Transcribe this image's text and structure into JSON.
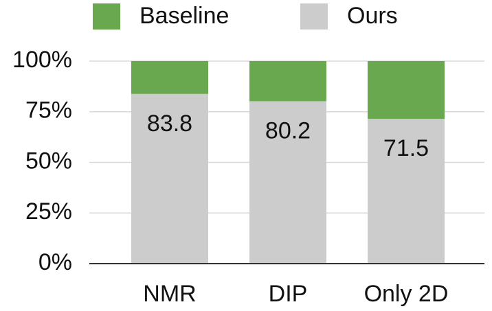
{
  "chart_data": {
    "type": "stacked_bar",
    "categories": [
      "NMR",
      "DIP",
      "Only 2D"
    ],
    "series": [
      {
        "name": "Baseline",
        "color": "#6aa84f",
        "values": [
          16.2,
          19.8,
          28.5
        ]
      },
      {
        "name": "Ours",
        "color": "#cccccc",
        "values": [
          83.8,
          80.2,
          71.5
        ]
      }
    ],
    "ylim": [
      0,
      100
    ],
    "yticks": [
      {
        "value": 0,
        "label": "0%"
      },
      {
        "value": 25,
        "label": "25%"
      },
      {
        "value": 50,
        "label": "50%"
      },
      {
        "value": 75,
        "label": "75%"
      },
      {
        "value": 100,
        "label": "100%"
      }
    ],
    "grid": true,
    "data_labels_series": "Ours"
  }
}
